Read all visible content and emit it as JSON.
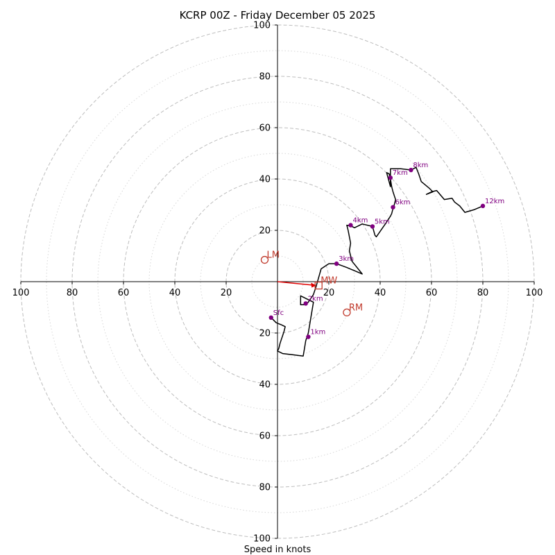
{
  "chart_data": {
    "type": "hodograph",
    "title": "KCRP 00Z - Friday December 05 2025",
    "xlabel": "Speed in knots",
    "xlim": [
      -100,
      100
    ],
    "ylim": [
      -100,
      100
    ],
    "rings_major": [
      20,
      40,
      60,
      80,
      100
    ],
    "rings_minor": [
      10,
      30,
      50,
      70,
      90
    ],
    "x_ticks": [
      -100,
      -80,
      -60,
      -40,
      -20,
      20,
      40,
      60,
      80,
      100
    ],
    "x_tick_labels": [
      "100",
      "80",
      "60",
      "40",
      "20",
      "20",
      "40",
      "60",
      "80",
      "100"
    ],
    "y_ticks": [
      100,
      80,
      60,
      40,
      20,
      -20,
      -40,
      -60,
      -80,
      -100
    ],
    "y_tick_labels": [
      "100",
      "80",
      "60",
      "40",
      "20",
      "20",
      "40",
      "60",
      "80",
      "100"
    ],
    "trace": [
      [
        -2.5,
        -14
      ],
      [
        -0.5,
        -16
      ],
      [
        1.5,
        -16.8
      ],
      [
        3,
        -17.5
      ],
      [
        2.5,
        -19.5
      ],
      [
        2,
        -21
      ],
      [
        1,
        -24
      ],
      [
        0.5,
        -26
      ],
      [
        0,
        -27
      ],
      [
        2,
        -28
      ],
      [
        6,
        -28.5
      ],
      [
        10,
        -29
      ],
      [
        10.5,
        -26
      ],
      [
        11,
        -23
      ],
      [
        12,
        -20
      ],
      [
        13,
        -14
      ],
      [
        14,
        -8
      ],
      [
        13,
        -7.5
      ],
      [
        12,
        -7
      ],
      [
        9,
        -5.5
      ],
      [
        9,
        -9
      ],
      [
        10.5,
        -9
      ],
      [
        12,
        -8
      ],
      [
        14,
        -5
      ],
      [
        15,
        -2
      ],
      [
        17,
        5
      ],
      [
        20,
        7
      ],
      [
        23,
        7
      ],
      [
        27,
        5.5
      ],
      [
        33,
        3
      ],
      [
        29,
        8
      ],
      [
        28,
        12
      ],
      [
        28.5,
        15
      ],
      [
        27.5,
        20
      ],
      [
        27,
        22
      ],
      [
        29,
        21.5
      ],
      [
        30,
        21
      ],
      [
        33,
        22.5
      ],
      [
        37,
        21.5
      ],
      [
        38,
        18
      ],
      [
        38.5,
        17.5
      ],
      [
        42,
        22.5
      ],
      [
        44,
        25.5
      ],
      [
        44.5,
        26.5
      ],
      [
        45,
        28.5
      ],
      [
        45.5,
        30
      ],
      [
        46,
        32
      ],
      [
        45,
        35
      ],
      [
        44.5,
        37
      ],
      [
        44,
        40
      ],
      [
        43.5,
        42
      ],
      [
        42.5,
        42.5
      ],
      [
        44,
        37
      ],
      [
        44,
        44
      ],
      [
        48,
        44
      ],
      [
        52,
        43.5
      ],
      [
        54,
        44.5
      ],
      [
        55,
        42
      ],
      [
        56,
        39
      ],
      [
        59,
        36.5
      ],
      [
        60.5,
        35
      ],
      [
        58,
        34
      ],
      [
        60,
        35
      ],
      [
        62,
        35.5
      ],
      [
        65,
        32
      ],
      [
        68,
        32.5
      ],
      [
        69,
        31
      ],
      [
        71,
        29.5
      ],
      [
        73,
        27
      ],
      [
        76.5,
        28
      ],
      [
        80,
        29.5
      ]
    ],
    "height_markers": [
      {
        "label": "Sfc",
        "x": -2.5,
        "y": -14
      },
      {
        "label": "1km",
        "x": 12,
        "y": -21.5
      },
      {
        "label": "2km",
        "x": 11,
        "y": -8.5
      },
      {
        "label": "3km",
        "x": 23,
        "y": 7
      },
      {
        "label": "4km",
        "x": 28.5,
        "y": 22
      },
      {
        "label": "5km",
        "x": 37,
        "y": 21.5
      },
      {
        "label": "6km",
        "x": 45,
        "y": 29
      },
      {
        "label": "7km",
        "x": 44,
        "y": 40.5
      },
      {
        "label": "8km",
        "x": 52,
        "y": 43.5
      },
      {
        "label": "12km",
        "x": 80,
        "y": 29.5
      }
    ],
    "storm_motions": [
      {
        "label": "LM",
        "x": -5,
        "y": 8.5,
        "marker": "circle"
      },
      {
        "label": "MW",
        "x": 16,
        "y": -1.5,
        "marker": "square"
      },
      {
        "label": "RM",
        "x": 27,
        "y": -12,
        "marker": "circle"
      }
    ],
    "mean_wind_vector": {
      "from": [
        0,
        0
      ],
      "to": [
        16,
        -1.5
      ]
    },
    "colors": {
      "trace": "#000000",
      "height_markers": "#800080",
      "storm_motion": "#c0392b",
      "ring_major": "#bdbdbd",
      "ring_minor": "#d6d6d6",
      "axes": "#000000"
    }
  }
}
